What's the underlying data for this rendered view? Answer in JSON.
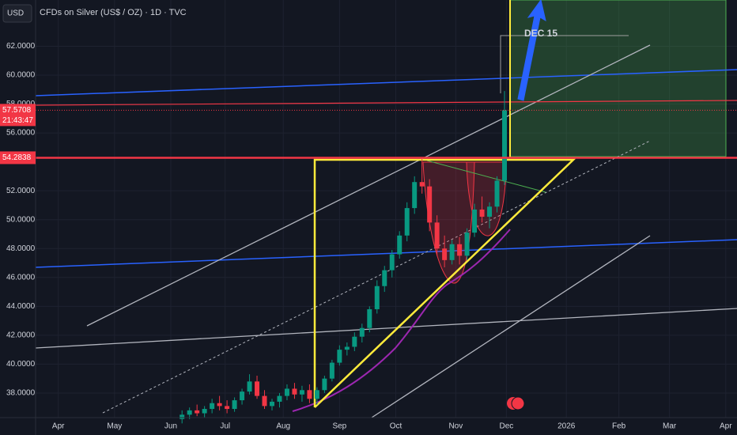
{
  "chart_data": {
    "type": "candlestick",
    "currency": "USD",
    "symbol_title": "CFDs on Silver (US$ / OZ) · 1D · TVC",
    "annotation": "DEC 15",
    "countdown": "21:43:47",
    "levels": [
      54.2838
    ],
    "up_color": "#089981",
    "down_color": "#f23645",
    "x": [
      76,
      80,
      84,
      88,
      92,
      96,
      100,
      104,
      108,
      112,
      116,
      120,
      124,
      128,
      132,
      136,
      140,
      144,
      148,
      152,
      156,
      160,
      164,
      168,
      172,
      176,
      180,
      184,
      188,
      192,
      196,
      200,
      204,
      208,
      212,
      216,
      220,
      224,
      228,
      232,
      236,
      240,
      244,
      248
    ],
    "open": [
      36.2,
      36.5,
      36.8,
      36.6,
      36.9,
      37.3,
      37.1,
      36.9,
      37.5,
      38.1,
      38.8,
      37.8,
      37.1,
      37.4,
      37.8,
      38.3,
      37.9,
      38.2,
      37.6,
      38.2,
      39.0,
      40.1,
      41.0,
      41.2,
      41.9,
      42.5,
      43.8,
      45.4,
      46.5,
      47.6,
      48.9,
      50.8,
      52.6,
      52.3,
      49.8,
      48.0,
      47.2,
      48.3,
      47.5,
      49.1,
      50.7,
      50.2,
      50.9,
      52.7
    ],
    "high": [
      36.8,
      37.0,
      37.2,
      37.1,
      37.6,
      37.8,
      37.5,
      37.7,
      38.3,
      39.3,
      39.2,
      38.2,
      37.6,
      38.0,
      38.6,
      38.7,
      38.5,
      38.6,
      38.4,
      39.2,
      40.3,
      41.3,
      41.5,
      42.2,
      42.8,
      44.0,
      45.8,
      46.8,
      47.9,
      49.2,
      51.2,
      53.0,
      54.3,
      52.8,
      50.3,
      48.9,
      48.6,
      48.8,
      49.4,
      51.1,
      51.6,
      51.2,
      53.0,
      58.9
    ],
    "low": [
      35.9,
      36.2,
      36.4,
      36.3,
      36.6,
      36.8,
      36.6,
      36.7,
      37.2,
      37.9,
      37.6,
      36.9,
      36.8,
      37.0,
      37.5,
      37.6,
      37.4,
      37.3,
      37.2,
      38.0,
      38.8,
      39.9,
      40.6,
      40.9,
      41.5,
      42.2,
      43.5,
      45.0,
      46.0,
      47.3,
      48.5,
      50.4,
      51.8,
      49.2,
      47.5,
      46.7,
      46.9,
      46.9,
      47.2,
      48.8,
      49.8,
      49.4,
      50.5,
      52.4
    ],
    "close": [
      36.5,
      36.8,
      36.6,
      36.9,
      37.3,
      37.1,
      36.9,
      37.5,
      38.1,
      38.8,
      37.8,
      37.1,
      37.4,
      37.8,
      38.3,
      37.9,
      38.2,
      37.6,
      38.2,
      39.0,
      40.1,
      41.0,
      41.2,
      41.9,
      42.5,
      43.8,
      45.4,
      46.5,
      47.6,
      48.9,
      50.8,
      52.6,
      52.3,
      49.8,
      48.0,
      47.2,
      48.3,
      47.5,
      49.1,
      50.7,
      50.2,
      50.9,
      52.7,
      57.5708
    ],
    "xlim": [
      0,
      372
    ],
    "xticks": [
      {
        "value": 10,
        "label": "Apr"
      },
      {
        "value": 40,
        "label": "May"
      },
      {
        "value": 70,
        "label": "Jun"
      },
      {
        "value": 99,
        "label": "Jul"
      },
      {
        "value": 130,
        "label": "Aug"
      },
      {
        "value": 160,
        "label": "Sep"
      },
      {
        "value": 190,
        "label": "Oct"
      },
      {
        "value": 222,
        "label": "Nov"
      },
      {
        "value": 249,
        "label": "Dec"
      },
      {
        "value": 281,
        "label": "2026"
      },
      {
        "value": 309,
        "label": "Feb"
      },
      {
        "value": 336,
        "label": "Mar"
      },
      {
        "value": 366,
        "label": "Apr"
      }
    ],
    "ylim": [
      36.3,
      65.2
    ],
    "yticks": [
      {
        "value": 38,
        "label": "38.0000"
      },
      {
        "value": 40,
        "label": "40.0000"
      },
      {
        "value": 42,
        "label": "42.0000"
      },
      {
        "value": 44,
        "label": "44.0000"
      },
      {
        "value": 46,
        "label": "46.0000"
      },
      {
        "value": 48,
        "label": "48.0000"
      },
      {
        "value": 50,
        "label": "50.0000"
      },
      {
        "value": 52,
        "label": "52.0000"
      },
      {
        "value": 56,
        "label": "56.0000"
      },
      {
        "value": 58,
        "label": "58.0000"
      },
      {
        "value": 60,
        "label": "60.0000"
      },
      {
        "value": 62,
        "label": "62.0000"
      }
    ],
    "grid": true
  }
}
